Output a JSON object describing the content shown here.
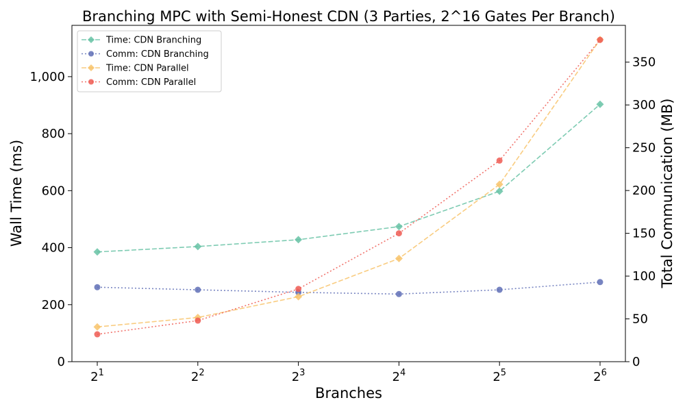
{
  "chart_data": {
    "type": "line",
    "title": "Branching MPC with Semi-Honest CDN (3 Parties, 2^16 Gates Per Branch)",
    "xlabel": "Branches",
    "ylabel_left": "Wall Time (ms)",
    "ylabel_right": "Total Communication (MB)",
    "x_scale": "log2",
    "x": [
      2,
      4,
      8,
      16,
      32,
      64
    ],
    "x_tick_labels": [
      {
        "base": "2",
        "exp": "1"
      },
      {
        "base": "2",
        "exp": "2"
      },
      {
        "base": "2",
        "exp": "3"
      },
      {
        "base": "2",
        "exp": "4"
      },
      {
        "base": "2",
        "exp": "5"
      },
      {
        "base": "2",
        "exp": "6"
      }
    ],
    "ylim_left": [
      0,
      1180
    ],
    "yticks_left": [
      0,
      200,
      400,
      600,
      800,
      1000
    ],
    "ytick_labels_left": [
      "0",
      "200",
      "400",
      "600",
      "800",
      "1,000"
    ],
    "ylim_right": [
      0,
      393
    ],
    "yticks_right": [
      0,
      50,
      100,
      150,
      200,
      250,
      300,
      350
    ],
    "ytick_labels_right": [
      "0",
      "50",
      "100",
      "150",
      "200",
      "250",
      "300",
      "350"
    ],
    "grid": false,
    "legend_position": "top-left",
    "series": [
      {
        "name": "Time: CDN Branching",
        "axis": "left",
        "color": "#66c2a5",
        "marker": "diamond",
        "linestyle": "dashed",
        "values": [
          385,
          404,
          428,
          474,
          598,
          903
        ]
      },
      {
        "name": "Comm: CDN Branching",
        "axis": "right",
        "color": "#5f6fb6",
        "marker": "circle",
        "linestyle": "dotted",
        "values": [
          87,
          84,
          81,
          79,
          84,
          93
        ]
      },
      {
        "name": "Time: CDN Parallel",
        "axis": "left",
        "color": "#f8c36a",
        "marker": "diamond",
        "linestyle": "dashed",
        "values": [
          122,
          155,
          228,
          362,
          622,
          1130
        ]
      },
      {
        "name": "Comm: CDN Parallel",
        "axis": "right",
        "color": "#ef5a52",
        "marker": "circle",
        "linestyle": "dotted",
        "values": [
          32,
          48,
          85,
          150,
          235,
          376
        ]
      }
    ]
  }
}
